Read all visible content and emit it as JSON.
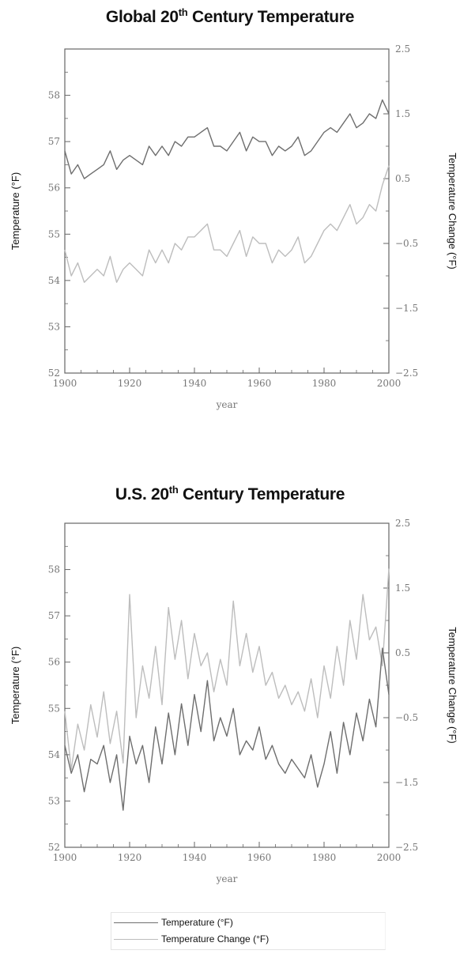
{
  "chart_data": [
    {
      "type": "line",
      "title_prefix": "Global 20",
      "title_sup": "th",
      "title_suffix": " Century Temperature",
      "xlabel": "year",
      "ylabel": "Temperature (°F)",
      "y2label": "Temperature Change (°F)",
      "xlim": [
        1900,
        2000
      ],
      "ylim": [
        52,
        59
      ],
      "y2lim": [
        -2.5,
        2.5
      ],
      "x_ticks": [
        "1900",
        "1920",
        "1940",
        "1960",
        "1980",
        "2000"
      ],
      "y_ticks": [
        "52",
        "53",
        "54",
        "55",
        "56",
        "57",
        "58"
      ],
      "y2_ticks": [
        "-2.5",
        "-1.5",
        "-0.5",
        "0.5",
        "1.5",
        "2.5"
      ],
      "grid": false,
      "series": [
        {
          "name": "Temperature (°F)",
          "axis": "left",
          "color": "#6e6e6e",
          "x": [
            1900,
            1902,
            1904,
            1906,
            1908,
            1910,
            1912,
            1914,
            1916,
            1918,
            1920,
            1922,
            1924,
            1926,
            1928,
            1930,
            1932,
            1934,
            1936,
            1938,
            1940,
            1942,
            1944,
            1946,
            1948,
            1950,
            1952,
            1954,
            1956,
            1958,
            1960,
            1962,
            1964,
            1966,
            1968,
            1970,
            1972,
            1974,
            1976,
            1978,
            1980,
            1982,
            1984,
            1986,
            1988,
            1990,
            1992,
            1994,
            1996,
            1998,
            2000
          ],
          "y": [
            56.8,
            56.3,
            56.5,
            56.2,
            56.3,
            56.4,
            56.5,
            56.8,
            56.4,
            56.6,
            56.7,
            56.6,
            56.5,
            56.9,
            56.7,
            56.9,
            56.7,
            57.0,
            56.9,
            57.1,
            57.1,
            57.2,
            57.3,
            56.9,
            56.9,
            56.8,
            57.0,
            57.2,
            56.8,
            57.1,
            57.0,
            57.0,
            56.7,
            56.9,
            56.8,
            56.9,
            57.1,
            56.7,
            56.8,
            57.0,
            57.2,
            57.3,
            57.2,
            57.4,
            57.6,
            57.3,
            57.4,
            57.6,
            57.5,
            57.9,
            57.6
          ]
        },
        {
          "name": "Temperature Change (°F)",
          "axis": "right",
          "color": "#bdbdbd",
          "x": [
            1900,
            1902,
            1904,
            1906,
            1908,
            1910,
            1912,
            1914,
            1916,
            1918,
            1920,
            1922,
            1924,
            1926,
            1928,
            1930,
            1932,
            1934,
            1936,
            1938,
            1940,
            1942,
            1944,
            1946,
            1948,
            1950,
            1952,
            1954,
            1956,
            1958,
            1960,
            1962,
            1964,
            1966,
            1968,
            1970,
            1972,
            1974,
            1976,
            1978,
            1980,
            1982,
            1984,
            1986,
            1988,
            1990,
            1992,
            1994,
            1996,
            1998,
            2000
          ],
          "y": [
            -0.6,
            -1.0,
            -0.8,
            -1.1,
            -1.0,
            -0.9,
            -1.0,
            -0.7,
            -1.1,
            -0.9,
            -0.8,
            -0.9,
            -1.0,
            -0.6,
            -0.8,
            -0.6,
            -0.8,
            -0.5,
            -0.6,
            -0.4,
            -0.4,
            -0.3,
            -0.2,
            -0.6,
            -0.6,
            -0.7,
            -0.5,
            -0.3,
            -0.7,
            -0.4,
            -0.5,
            -0.5,
            -0.8,
            -0.6,
            -0.7,
            -0.6,
            -0.4,
            -0.8,
            -0.7,
            -0.5,
            -0.3,
            -0.2,
            -0.3,
            -0.1,
            0.1,
            -0.2,
            -0.1,
            0.1,
            0.0,
            0.4,
            0.7
          ]
        }
      ]
    },
    {
      "type": "line",
      "title_prefix": "U.S. 20",
      "title_sup": "th",
      "title_suffix": " Century Temperature",
      "xlabel": "year",
      "ylabel": "Temperature (°F)",
      "y2label": "Temperature Change (°F)",
      "xlim": [
        1900,
        2000
      ],
      "ylim": [
        52,
        59
      ],
      "y2lim": [
        -2.5,
        2.5
      ],
      "x_ticks": [
        "1900",
        "1920",
        "1940",
        "1960",
        "1980",
        "2000"
      ],
      "y_ticks": [
        "52",
        "53",
        "54",
        "55",
        "56",
        "57",
        "58"
      ],
      "y2_ticks": [
        "-2.5",
        "-1.5",
        "-0.5",
        "0.5",
        "1.5",
        "2.5"
      ],
      "grid": false,
      "series": [
        {
          "name": "Temperature (°F)",
          "axis": "left",
          "color": "#6e6e6e",
          "x": [
            1900,
            1902,
            1904,
            1906,
            1908,
            1910,
            1912,
            1914,
            1916,
            1918,
            1920,
            1922,
            1924,
            1926,
            1928,
            1930,
            1932,
            1934,
            1936,
            1938,
            1940,
            1942,
            1944,
            1946,
            1948,
            1950,
            1952,
            1954,
            1956,
            1958,
            1960,
            1962,
            1964,
            1966,
            1968,
            1970,
            1972,
            1974,
            1976,
            1978,
            1980,
            1982,
            1984,
            1986,
            1988,
            1990,
            1992,
            1994,
            1996,
            1998,
            2000
          ],
          "y": [
            54.2,
            53.6,
            54.0,
            53.2,
            53.9,
            53.8,
            54.2,
            53.4,
            54.0,
            52.8,
            54.4,
            53.8,
            54.2,
            53.4,
            54.6,
            53.8,
            54.9,
            54.0,
            55.1,
            54.2,
            55.3,
            54.5,
            55.6,
            54.3,
            54.8,
            54.4,
            55.0,
            54.0,
            54.3,
            54.1,
            54.6,
            53.9,
            54.2,
            53.8,
            53.6,
            53.9,
            53.7,
            53.5,
            54.0,
            53.3,
            53.8,
            54.5,
            53.6,
            54.7,
            54.0,
            54.9,
            54.3,
            55.2,
            54.6,
            56.3,
            55.3
          ]
        },
        {
          "name": "Temperature Change (°F)",
          "axis": "right",
          "color": "#bdbdbd",
          "x": [
            1900,
            1902,
            1904,
            1906,
            1908,
            1910,
            1912,
            1914,
            1916,
            1918,
            1920,
            1922,
            1924,
            1926,
            1928,
            1930,
            1932,
            1934,
            1936,
            1938,
            1940,
            1942,
            1944,
            1946,
            1948,
            1950,
            1952,
            1954,
            1956,
            1958,
            1960,
            1962,
            1964,
            1966,
            1968,
            1970,
            1972,
            1974,
            1976,
            1978,
            1980,
            1982,
            1984,
            1986,
            1988,
            1990,
            1992,
            1994,
            1996,
            1998,
            2000
          ],
          "y": [
            -0.4,
            -1.3,
            -0.6,
            -1.0,
            -0.3,
            -0.8,
            -0.1,
            -0.9,
            -0.4,
            -1.2,
            1.4,
            -0.5,
            0.3,
            -0.2,
            0.6,
            -0.3,
            1.2,
            0.4,
            1.0,
            0.1,
            0.8,
            0.3,
            0.5,
            -0.1,
            0.4,
            0.0,
            1.3,
            0.3,
            0.8,
            0.2,
            0.6,
            0.0,
            0.2,
            -0.2,
            0.0,
            -0.3,
            -0.1,
            -0.4,
            0.1,
            -0.5,
            0.3,
            -0.2,
            0.6,
            0.0,
            1.0,
            0.4,
            1.4,
            0.7,
            0.9,
            0.3,
            1.8
          ]
        }
      ]
    }
  ],
  "legend": {
    "items": [
      "Temperature (°F)",
      "Temperature Change (°F)"
    ]
  }
}
